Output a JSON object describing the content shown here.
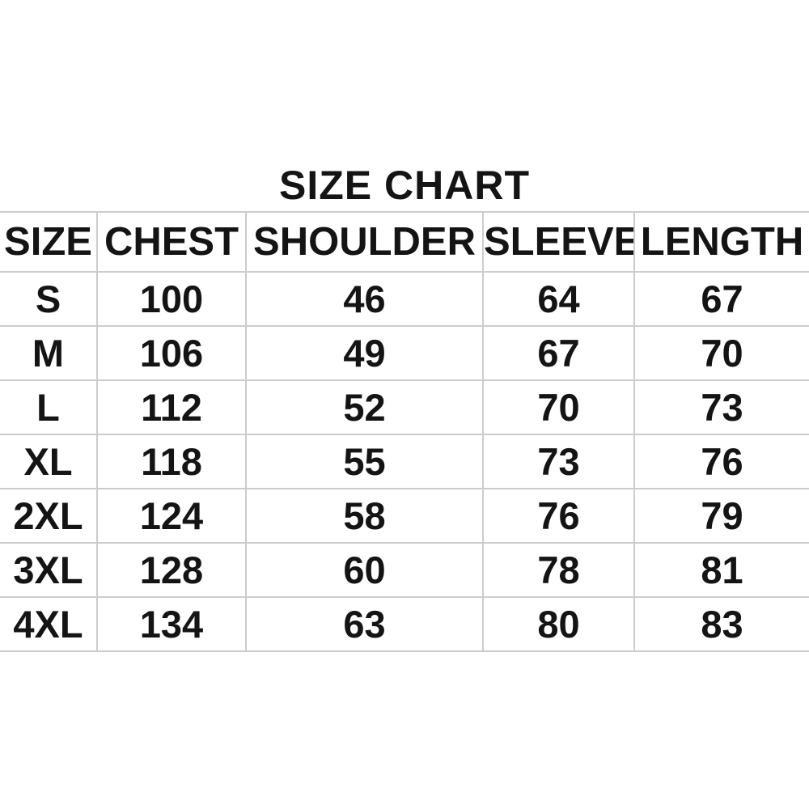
{
  "title": "SIZE CHART",
  "colors": {
    "background": "#ffffff",
    "text": "#141414",
    "gridline": "#cccccc"
  },
  "chart_data": {
    "type": "table",
    "title": "SIZE CHART",
    "columns": [
      "SIZE",
      "CHEST",
      "SHOULDER",
      "SLEEVE",
      "LENGTH"
    ],
    "rows": [
      [
        "S",
        "100",
        "46",
        "64",
        "67"
      ],
      [
        "M",
        "106",
        "49",
        "67",
        "70"
      ],
      [
        "L",
        "112",
        "52",
        "70",
        "73"
      ],
      [
        "XL",
        "118",
        "55",
        "73",
        "76"
      ],
      [
        "2XL",
        "124",
        "58",
        "76",
        "79"
      ],
      [
        "3XL",
        "128",
        "60",
        "78",
        "81"
      ],
      [
        "4XL",
        "134",
        "63",
        "80",
        "83"
      ]
    ],
    "layout": {
      "grid": true,
      "outer_vertical_borders": false,
      "header_position": "top"
    }
  }
}
